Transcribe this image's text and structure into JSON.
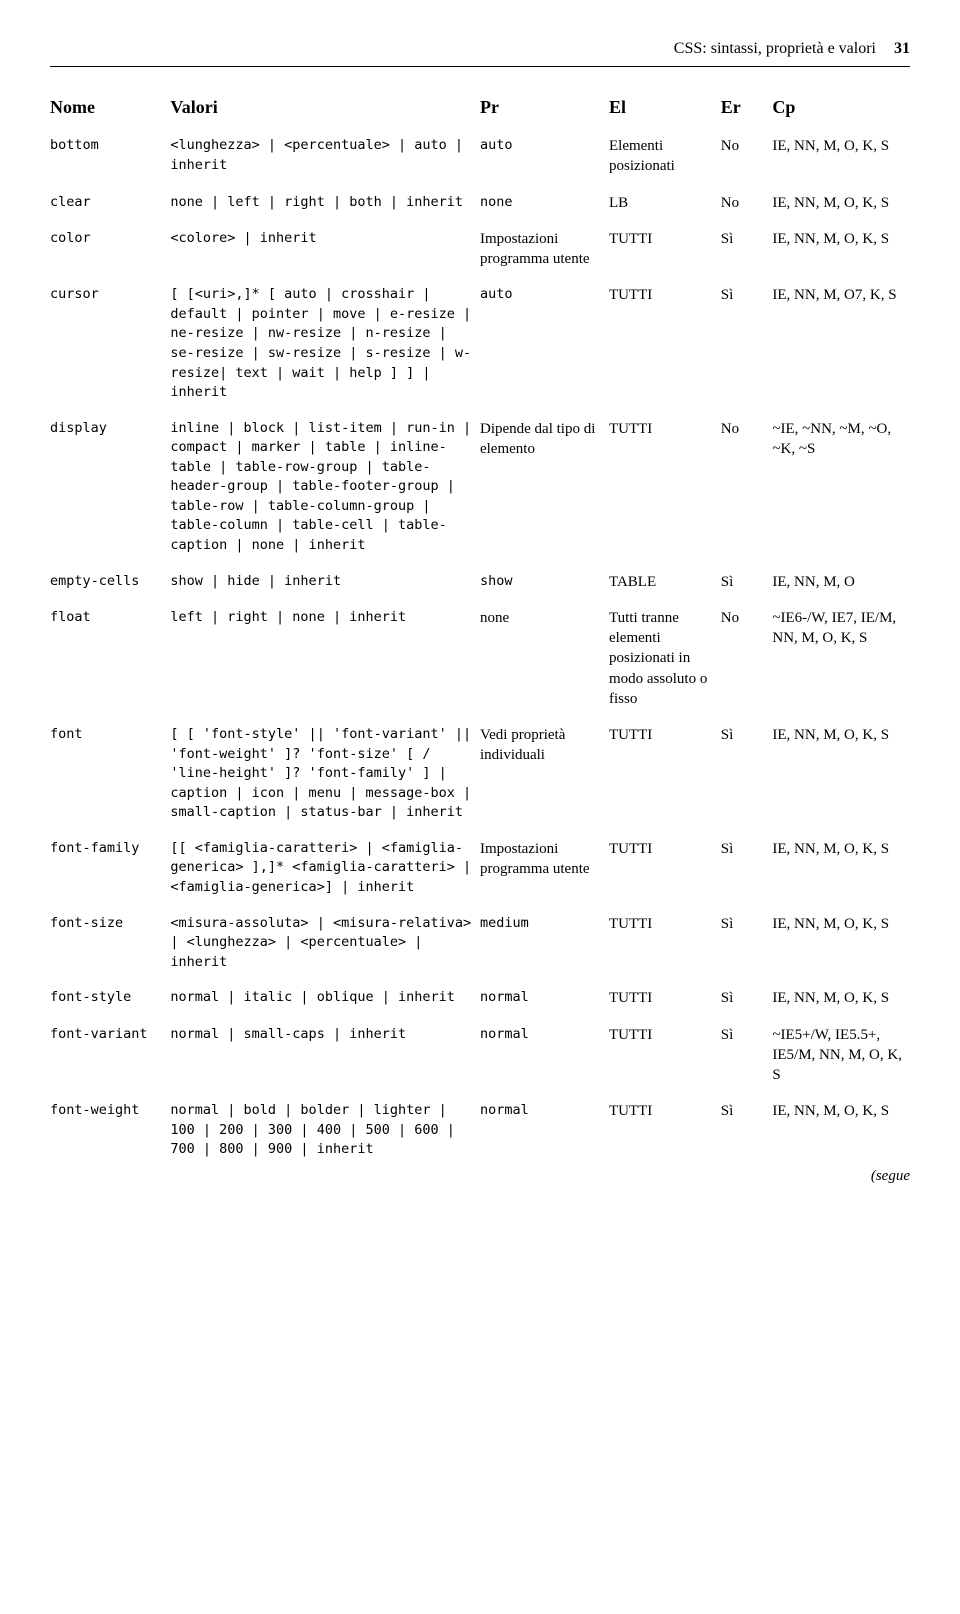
{
  "header": {
    "title": "CSS: sintassi, proprietà e valori",
    "page": "31"
  },
  "columns": {
    "nome": "Nome",
    "valori": "Valori",
    "pr": "Pr",
    "el": "El",
    "er": "Er",
    "cp": "Cp"
  },
  "rows": [
    {
      "nome": "bottom",
      "valori": "<lunghezza> | <percentuale> | auto | inherit",
      "pr": "auto",
      "el": "Elementi posizionati",
      "er": "No",
      "cp": "IE, NN, M, O, K, S"
    },
    {
      "nome": "clear",
      "valori": "none | left | right | both | inherit",
      "pr": "none",
      "el": "LB",
      "er": "No",
      "cp": "IE, NN, M, O, K, S"
    },
    {
      "nome": "color",
      "valori": "<colore> | inherit",
      "pr": "Impostazioni programma utente",
      "el": "TUTTI",
      "er": "Sì",
      "cp": "IE, NN, M, O, K, S"
    },
    {
      "nome": "cursor",
      "valori": "[ [<uri>,]* [ auto | crosshair | default | pointer | move | e-resize | ne-resize | nw-resize | n-resize | se-resize | sw-resize | s-resize | w-resize| text | wait | help ] ] | inherit",
      "pr": "auto",
      "el": "TUTTI",
      "er": "Sì",
      "cp": "IE, NN, M, O7, K, S"
    },
    {
      "nome": "display",
      "valori": "inline | block | list-item | run-in | compact | marker | table | inline-table | table-row-group | table-header-group | table-footer-group | table-row | table-column-group | table-column | table-cell | table-caption | none | inherit",
      "pr": "Dipende dal tipo di elemento",
      "el": "TUTTI",
      "er": "No",
      "cp": "~IE, ~NN, ~M, ~O, ~K, ~S"
    },
    {
      "nome": "empty-cells",
      "valori": "show | hide | inherit",
      "pr": "show",
      "el": "TABLE",
      "er": "Sì",
      "cp": "IE, NN, M, O"
    },
    {
      "nome": "float",
      "valori": "left | right | none | inherit",
      "pr": "none",
      "el": "Tutti tranne elementi posizionati in modo assoluto o fisso",
      "er": "No",
      "cp": "~IE6-/W, IE7, IE/M, NN, M, O, K, S"
    },
    {
      "nome": "font",
      "valori": "[ [ 'font-style' || 'font-variant' || 'font-weight' ]? 'font-size' [ / 'line-height' ]? 'font-family' ] | caption | icon | menu | message-box | small-caption | status-bar | inherit",
      "pr": "Vedi proprietà individuali",
      "el": "TUTTI",
      "er": "Sì",
      "cp": "IE, NN, M, O, K, S"
    },
    {
      "nome": "font-family",
      "valori": "[[ <famiglia-caratteri> | <famiglia-generica> ],]* <famiglia-caratteri> | <famiglia-generica>] | inherit",
      "pr": "Impostazioni programma utente",
      "el": "TUTTI",
      "er": "Sì",
      "cp": "IE, NN, M, O, K, S"
    },
    {
      "nome": "font-size",
      "valori": "<misura-assoluta> | <misura-relativa> | <lunghezza> | <percentuale> | inherit",
      "pr": "medium",
      "el": "TUTTI",
      "er": "Sì",
      "cp": "IE, NN, M, O, K, S"
    },
    {
      "nome": "font-style",
      "valori": "normal | italic | oblique | inherit",
      "pr": "normal",
      "el": "TUTTI",
      "er": "Sì",
      "cp": "IE, NN, M, O, K, S"
    },
    {
      "nome": "font-variant",
      "valori": "normal | small-caps | inherit",
      "pr": "normal",
      "el": "TUTTI",
      "er": "Sì",
      "cp": "~IE5+/W, IE5.5+, IE5/M, NN, M, O, K, S"
    },
    {
      "nome": "font-weight",
      "valori": "normal | bold | bolder | lighter | 100 | 200 | 300 | 400 | 500 | 600 | 700 | 800 | 900 | inherit",
      "pr": "normal",
      "el": "TUTTI",
      "er": "Sì",
      "cp": "IE, NN, M, O, K, S"
    }
  ],
  "footer": {
    "segue": "(segue"
  }
}
